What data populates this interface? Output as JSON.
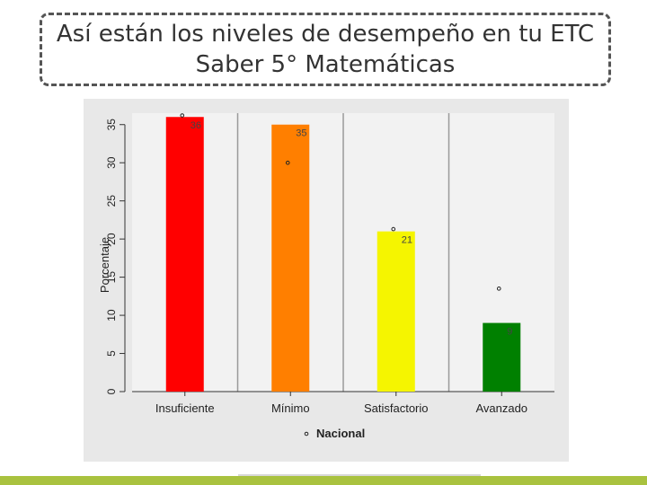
{
  "slide": {
    "title_line1": "Así están los niveles de desempeño en tu ETC",
    "title_line2": "Saber 5° Matemáticas"
  },
  "chart_data": {
    "type": "bar",
    "categories": [
      "Insuficiente",
      "Mínimo",
      "Satisfactorio",
      "Avanzado"
    ],
    "values": [
      36,
      35,
      21,
      9
    ],
    "value_labels": [
      "36",
      "35",
      "21",
      "9"
    ],
    "bar_colors": [
      "#ff0000",
      "#ff7f00",
      "#f5f500",
      "#008000"
    ],
    "reference_series": {
      "name": "Nacional",
      "values": [
        36.2,
        30,
        21.3,
        13.5
      ]
    },
    "ylabel": "Porcentaje",
    "xlabel": "",
    "ylim": [
      0,
      36.5
    ],
    "yticks": [
      0,
      5,
      10,
      15,
      20,
      25,
      30,
      35
    ],
    "grid": "vertical",
    "legend_position": "bottom"
  }
}
